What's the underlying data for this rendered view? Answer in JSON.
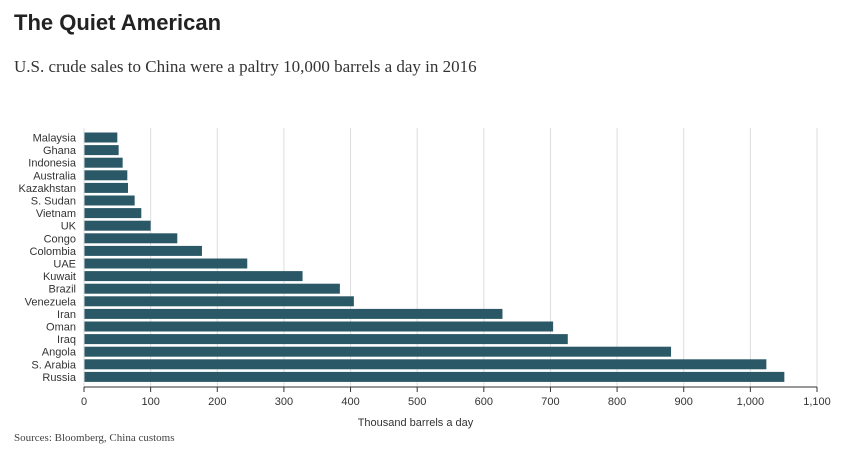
{
  "header": {
    "title": "The Quiet American",
    "subtitle": "U.S. crude sales to China were a paltry 10,000 barrels a day in 2016"
  },
  "footer": {
    "source": "Sources: Bloomberg, China customs"
  },
  "colors": {
    "bar": "#2b5866",
    "grid": "#dddddd",
    "axis": "#333333"
  },
  "chart_data": {
    "type": "bar",
    "orientation": "horizontal",
    "title": "The Quiet American",
    "subtitle": "U.S. crude sales to China were a paltry 10,000 barrels a day in 2016",
    "xlabel": "Thousand barrels a day",
    "ylabel": "",
    "xlim": [
      0,
      1100
    ],
    "grid": true,
    "legend": "none",
    "categories": [
      "Malaysia",
      "Ghana",
      "Indonesia",
      "Australia",
      "Kazakhstan",
      "S. Sudan",
      "Vietnam",
      "UK",
      "Congo",
      "Colombia",
      "UAE",
      "Kuwait",
      "Brazil",
      "Venezuela",
      "Iran",
      "Oman",
      "Iraq",
      "Angola",
      "S. Arabia",
      "Russia"
    ],
    "values": [
      50,
      52,
      58,
      65,
      66,
      76,
      86,
      100,
      140,
      177,
      245,
      328,
      384,
      405,
      628,
      704,
      726,
      881,
      1024,
      1051
    ],
    "x_ticks": [
      0,
      100,
      200,
      300,
      400,
      500,
      600,
      700,
      800,
      900,
      1000,
      1100
    ],
    "x_tick_labels": [
      "0",
      "100",
      "200",
      "300",
      "400",
      "500",
      "600",
      "700",
      "800",
      "900",
      "1,000",
      "1,100"
    ]
  }
}
